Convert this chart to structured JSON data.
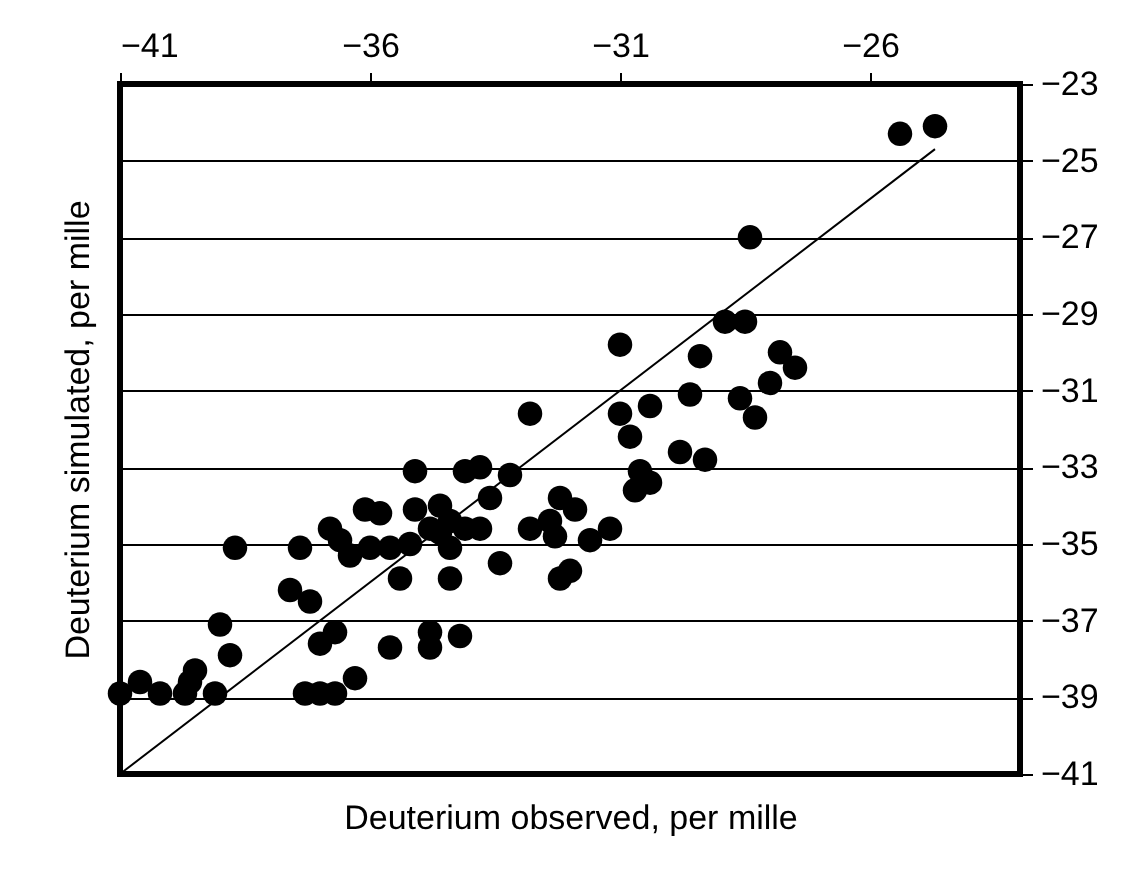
{
  "chart_data": {
    "type": "scatter",
    "xlabel": "Deuterium observed, per mille",
    "ylabel": "Deuterium simulated, per mille",
    "xlim": [
      -41,
      -23
    ],
    "xticks": [
      -41,
      -36,
      -31,
      -26
    ],
    "ylim": [
      -41,
      -23
    ],
    "yticks": [
      -41,
      -39,
      -37,
      -35,
      -33,
      -31,
      -29,
      -27,
      -25,
      -23
    ],
    "grid": "y",
    "series": [
      {
        "marker": "circle",
        "color": "#000000",
        "x": [
          -41.0,
          -40.6,
          -40.2,
          -39.7,
          -39.6,
          -39.5,
          -39.1,
          -38.7,
          -39.0,
          -38.8,
          -37.4,
          -37.6,
          -37.2,
          -37.3,
          -37.0,
          -36.7,
          -36.3,
          -37.0,
          -36.7,
          -35.6,
          -34.8,
          -34.8,
          -34.2,
          -35.4,
          -34.4,
          -33.4,
          -32.2,
          -32.0,
          -32.8,
          -35.1,
          -34.1,
          -33.8,
          -33.2,
          -33.6,
          -36.8,
          -36.6,
          -36.4,
          -36.1,
          -35.8,
          -36.0,
          -35.6,
          -35.2,
          -35.1,
          -34.6,
          -34.4,
          -34.6,
          -34.1,
          -33.8,
          -34.8,
          -34.4,
          -32.8,
          -32.4,
          -32.2,
          -31.9,
          -32.3,
          -31.6,
          -31.2,
          -31.0,
          -31.0,
          -25.4,
          -24.7,
          -28.4,
          -28.9,
          -28.5,
          -29.4,
          -27.8,
          -27.5,
          -28.0,
          -29.6,
          -28.6,
          -28.3,
          -30.4,
          -30.8,
          -29.8,
          -29.3,
          -30.6,
          -30.4,
          -30.7
        ],
        "values": [
          -38.9,
          -38.6,
          -38.9,
          -38.9,
          -38.6,
          -38.3,
          -38.9,
          -35.1,
          -37.1,
          -37.9,
          -35.1,
          -36.2,
          -36.5,
          -38.9,
          -38.9,
          -38.9,
          -38.5,
          -37.6,
          -37.3,
          -37.7,
          -37.7,
          -37.3,
          -37.4,
          -35.9,
          -35.9,
          -35.5,
          -35.9,
          -35.7,
          -31.6,
          -33.1,
          -33.1,
          -33.0,
          -33.2,
          -33.8,
          -34.6,
          -34.9,
          -35.3,
          -34.1,
          -34.2,
          -35.1,
          -35.1,
          -35.0,
          -34.1,
          -34.0,
          -34.4,
          -34.7,
          -34.6,
          -34.6,
          -34.6,
          -35.1,
          -34.6,
          -34.4,
          -33.8,
          -34.1,
          -34.8,
          -34.9,
          -34.6,
          -29.8,
          -31.6,
          -24.3,
          -24.1,
          -27.0,
          -29.2,
          -29.2,
          -30.1,
          -30.0,
          -30.4,
          -30.8,
          -31.1,
          -31.2,
          -31.7,
          -31.4,
          -32.2,
          -32.6,
          -32.8,
          -33.1,
          -33.4,
          -33.6
        ]
      },
      {
        "type": "line",
        "color": "#000000",
        "x": [
          -41,
          -24.7
        ],
        "values": [
          -41,
          -24.7
        ]
      }
    ]
  }
}
